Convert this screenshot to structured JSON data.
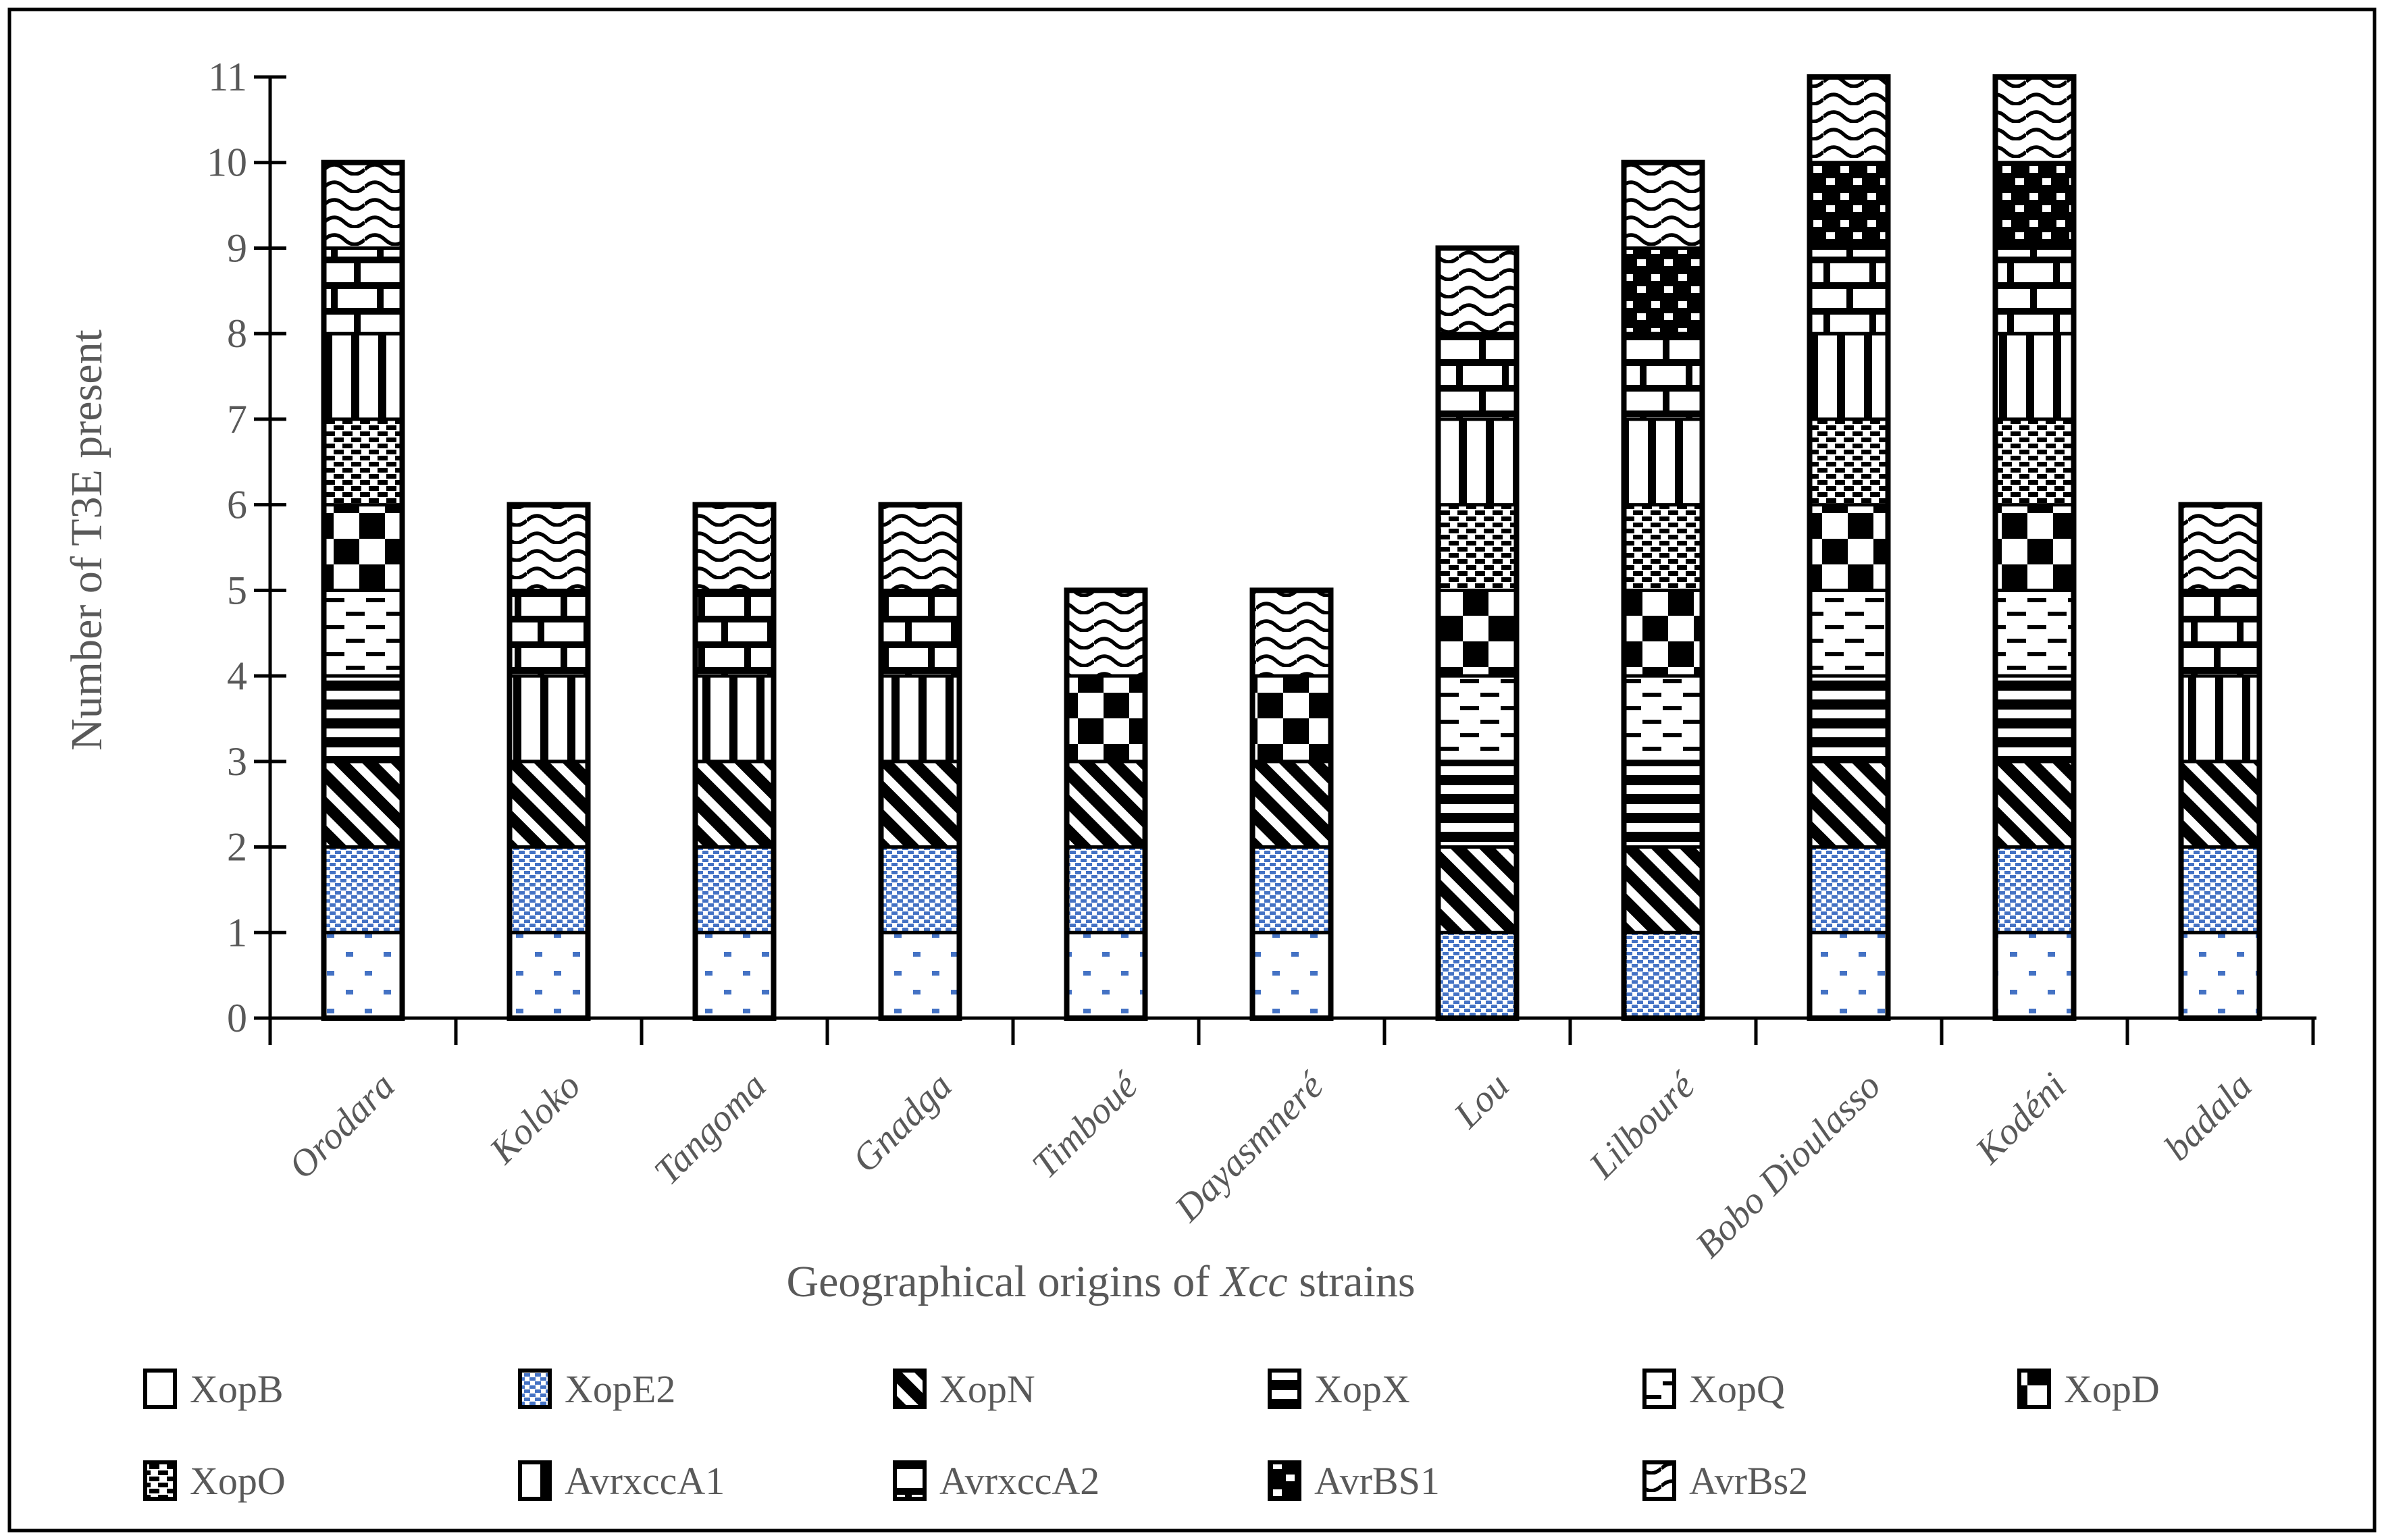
{
  "chart_data": {
    "type": "bar",
    "stacked": true,
    "title": "",
    "xlabel": "Geographical origins of Xcc strains",
    "xlabel_parts": {
      "prefix": "Geographical origins of ",
      "italic": "Xcc",
      "suffix": " strains"
    },
    "ylabel": "Number of T3E present",
    "ylim": [
      0,
      11
    ],
    "yticks": [
      0,
      1,
      2,
      3,
      4,
      5,
      6,
      7,
      8,
      9,
      10,
      11
    ],
    "grid": false,
    "legend_position": "bottom",
    "categories": [
      "Orodara",
      "Koloko",
      "Tangoma",
      "Gnadga",
      "Timboué",
      "Dayasmneré",
      "Lou",
      "Lilbouré",
      "Bobo Dioulasso",
      "Kodéni",
      "badala"
    ],
    "totals": [
      10,
      6,
      6,
      6,
      5,
      5,
      9,
      10,
      11,
      11,
      6
    ],
    "series": [
      {
        "name": "XopB",
        "pattern": "white-with-blue-dots",
        "values": [
          1,
          1,
          1,
          1,
          1,
          1,
          0,
          0,
          1,
          1,
          1
        ]
      },
      {
        "name": "XopE2",
        "pattern": "blue-weave",
        "values": [
          1,
          1,
          1,
          1,
          1,
          1,
          1,
          1,
          1,
          1,
          1
        ]
      },
      {
        "name": "XopN",
        "pattern": "black-diagonal-stripes",
        "values": [
          1,
          1,
          1,
          1,
          1,
          1,
          1,
          1,
          1,
          1,
          1
        ]
      },
      {
        "name": "XopX",
        "pattern": "black-horizontal-stripes",
        "values": [
          1,
          0,
          0,
          0,
          0,
          0,
          1,
          1,
          1,
          1,
          0
        ]
      },
      {
        "name": "XopQ",
        "pattern": "sparse-black-dashes",
        "values": [
          1,
          0,
          0,
          0,
          0,
          0,
          1,
          1,
          1,
          1,
          0
        ]
      },
      {
        "name": "XopD",
        "pattern": "checkerboard",
        "values": [
          1,
          0,
          0,
          0,
          1,
          1,
          1,
          1,
          1,
          1,
          0
        ]
      },
      {
        "name": "XopO",
        "pattern": "dense-dash-weave",
        "values": [
          1,
          0,
          0,
          0,
          0,
          0,
          1,
          1,
          1,
          1,
          0
        ]
      },
      {
        "name": "AvrxccA1",
        "pattern": "vertical-bars",
        "values": [
          1,
          1,
          1,
          1,
          0,
          0,
          1,
          1,
          1,
          1,
          1
        ]
      },
      {
        "name": "AvrxccA2",
        "pattern": "brick",
        "values": [
          1,
          1,
          1,
          1,
          0,
          0,
          1,
          1,
          1,
          1,
          1
        ]
      },
      {
        "name": "AvrBS1",
        "pattern": "black-with-white-patches",
        "values": [
          0,
          0,
          0,
          0,
          0,
          0,
          0,
          1,
          1,
          1,
          0
        ]
      },
      {
        "name": "AvrBs2",
        "pattern": "wavy-lines",
        "values": [
          1,
          1,
          1,
          1,
          1,
          1,
          1,
          1,
          1,
          1,
          1
        ]
      }
    ]
  },
  "legend": {
    "rows": [
      [
        "XopB",
        "XopE2",
        "XopN",
        "XopX",
        "XopQ",
        "XopD"
      ],
      [
        "XopO",
        "AvrxccA1",
        "AvrxccA2",
        "AvrBS1",
        "AvrBs2"
      ]
    ]
  },
  "colors": {
    "accent_blue": "#4472C4",
    "text_gray": "#595959",
    "axis_black": "#000000",
    "background": "#FFFFFF"
  }
}
